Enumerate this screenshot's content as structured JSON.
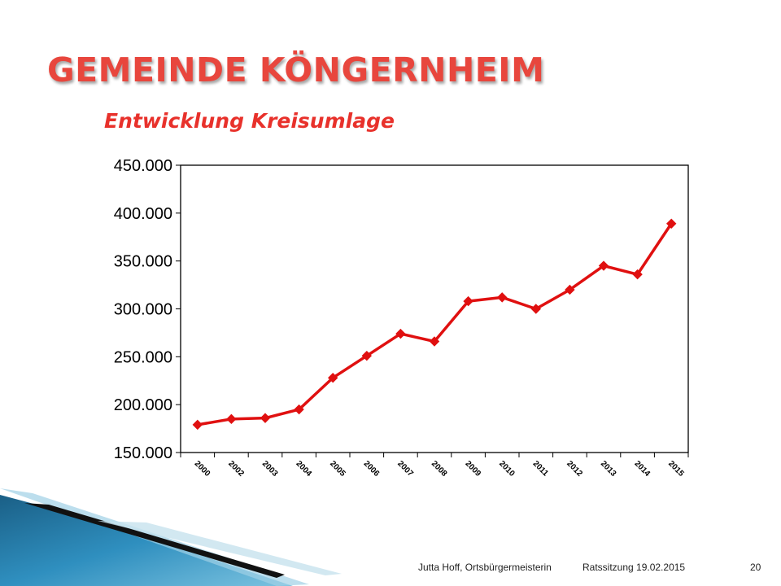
{
  "slide": {
    "title": "GEMEINDE KÖNGERNHEIM",
    "subtitle": "Entwicklung Kreisumlage",
    "footer_author": "Jutta Hoff, Ortsbürgermeisterin",
    "footer_event": "Ratssitzung 19.02.2015",
    "page_number": "20"
  },
  "colors": {
    "title": "#e8463d",
    "line": "#e01010"
  },
  "chart_data": {
    "type": "line",
    "title": "",
    "xlabel": "",
    "ylabel": "",
    "categories": [
      "2000",
      "2002",
      "2003",
      "2004",
      "2005",
      "2006",
      "2007",
      "2008",
      "2009",
      "2010",
      "2011",
      "2012",
      "2013",
      "2014",
      "2015"
    ],
    "series": [
      {
        "values": [
          179000,
          185000,
          186000,
          195000,
          228000,
          251000,
          274000,
          266000,
          308000,
          312000,
          300000,
          320000,
          345000,
          336000,
          389000
        ]
      }
    ],
    "ylim": [
      150000,
      450000
    ],
    "yticks": [
      150000,
      200000,
      250000,
      300000,
      350000,
      400000,
      450000
    ],
    "ytick_labels": [
      "150.000",
      "200.000",
      "250.000",
      "300.000",
      "350.000",
      "400.000",
      "450.000"
    ],
    "marker": "diamond",
    "grid": false,
    "legend": "none"
  }
}
